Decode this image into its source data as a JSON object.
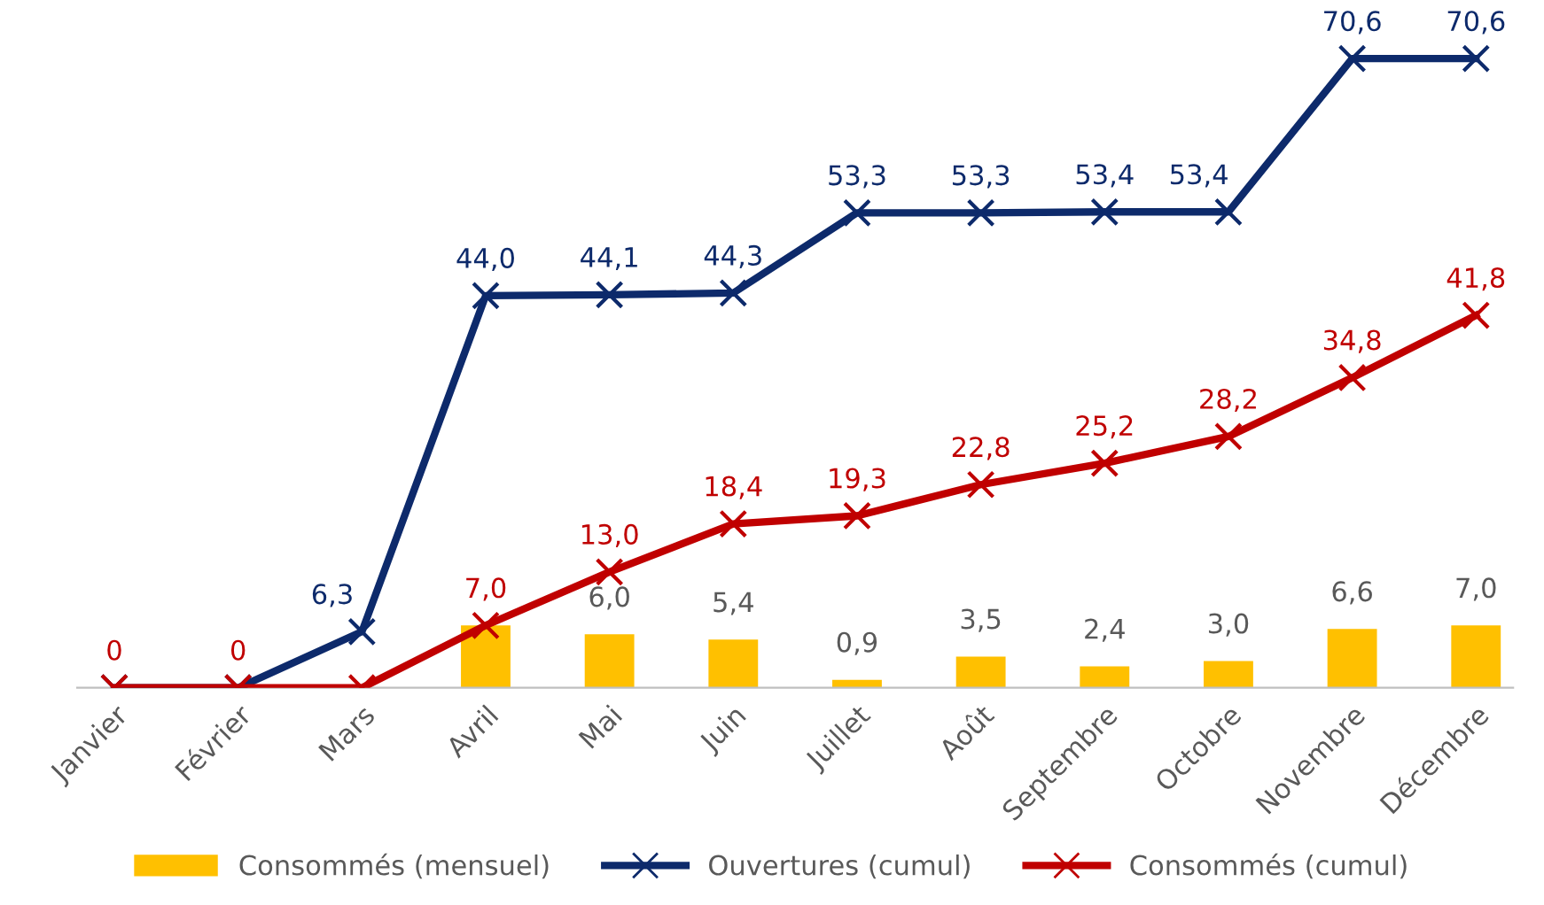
{
  "chart_data": {
    "type": "line",
    "categories": [
      "Janvier",
      "Février",
      "Mars",
      "Avril",
      "Mai",
      "Juin",
      "Juillet",
      "Août",
      "Septembre",
      "Octobre",
      "Novembre",
      "Décembre"
    ],
    "series": [
      {
        "name": "Consommés (mensuel)",
        "type": "bar",
        "color": "#ffc000",
        "values": [
          null,
          null,
          null,
          7.0,
          6.0,
          5.4,
          0.9,
          3.5,
          2.4,
          3.0,
          6.6,
          7.0
        ],
        "value_labels": [
          null,
          null,
          null,
          null,
          "6,0",
          "5,4",
          "0,9",
          "3,5",
          "2,4",
          "3,0",
          "6,6",
          "7,0"
        ]
      },
      {
        "name": "Ouvertures (cumul)",
        "color": "#0d2a6b",
        "marker": "cross",
        "values": [
          0,
          0,
          6.3,
          44.0,
          44.1,
          44.3,
          53.3,
          53.3,
          53.4,
          53.4,
          70.6,
          70.6
        ],
        "value_labels": [
          null,
          null,
          "6,3",
          "44,0",
          "44,1",
          "44,3",
          "53,3",
          "53,3",
          "53,4",
          "53,4",
          "70,6",
          "70,6"
        ]
      },
      {
        "name": "Consommés (cumul)",
        "color": "#c00000",
        "marker": "cross",
        "values": [
          0,
          0,
          0,
          7.0,
          13.0,
          18.4,
          19.3,
          22.8,
          25.2,
          28.2,
          34.8,
          41.8
        ],
        "value_labels": [
          "0",
          "0",
          null,
          "7,0",
          "13,0",
          "18,4",
          "19,3",
          "22,8",
          "25,2",
          "28,2",
          "34,8",
          "41,8"
        ]
      }
    ],
    "tick_labels": "x",
    "grid": false,
    "legend": "bottom",
    "line_style": "solid"
  }
}
